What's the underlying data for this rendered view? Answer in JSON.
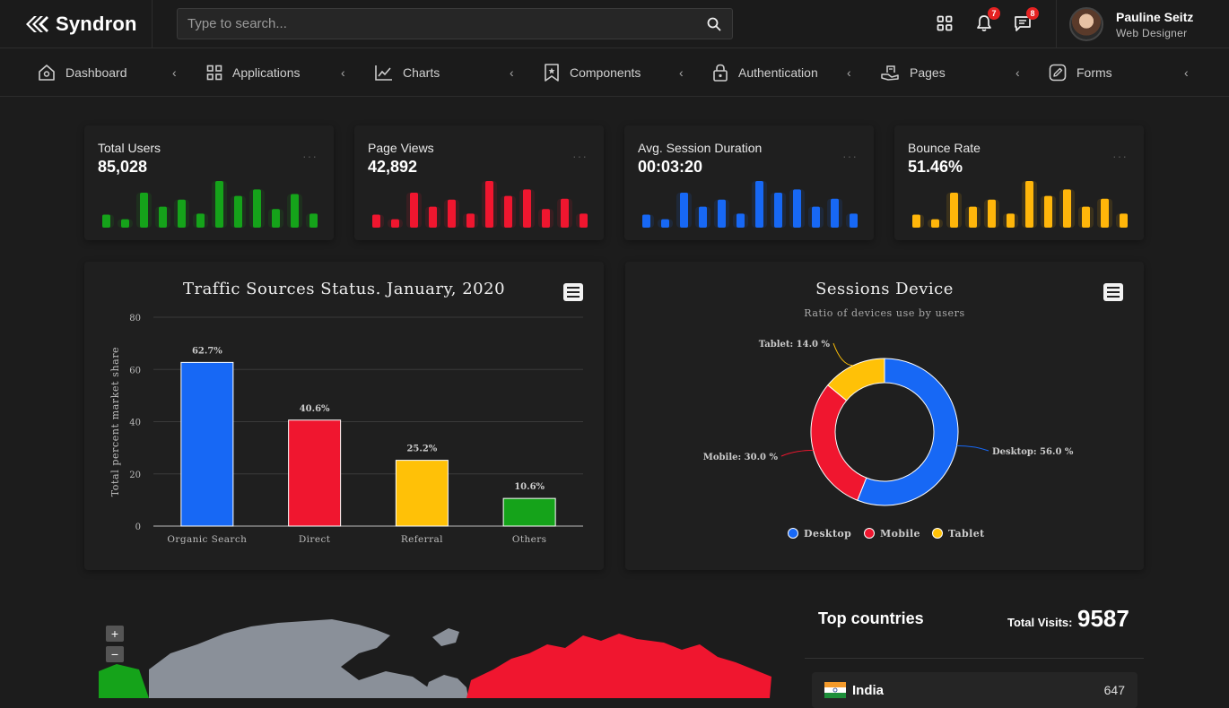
{
  "brand": {
    "name": "Syndron"
  },
  "search": {
    "placeholder": "Type to search..."
  },
  "notifications": {
    "bell_count": "7",
    "messages_count": "8"
  },
  "user": {
    "name": "Pauline Seitz",
    "role": "Web Designer"
  },
  "nav": [
    {
      "label": "Dashboard",
      "icon": "home-icon"
    },
    {
      "label": "Applications",
      "icon": "grid-icon"
    },
    {
      "label": "Charts",
      "icon": "line-chart-icon"
    },
    {
      "label": "Components",
      "icon": "bookmark-icon"
    },
    {
      "label": "Authentication",
      "icon": "lock-icon"
    },
    {
      "label": "Pages",
      "icon": "pages-icon"
    },
    {
      "label": "Forms",
      "icon": "edit-icon"
    }
  ],
  "stats": [
    {
      "title": "Total Users",
      "value": "85,028",
      "color": "#15a31a",
      "dots": "···",
      "bars": [
        0.28,
        0.18,
        0.75,
        0.45,
        0.6,
        0.3,
        1.0,
        0.68,
        0.82,
        0.4,
        0.72,
        0.3
      ]
    },
    {
      "title": "Page Views",
      "value": "42,892",
      "color": "#f0162f",
      "dots": "···",
      "bars": [
        0.28,
        0.18,
        0.75,
        0.45,
        0.6,
        0.3,
        1.0,
        0.68,
        0.82,
        0.4,
        0.62,
        0.3
      ]
    },
    {
      "title": "Avg. Session Duration",
      "value": "00:03:20",
      "color": "#1768f5",
      "dots": "···",
      "bars": [
        0.28,
        0.18,
        0.75,
        0.45,
        0.6,
        0.3,
        1.0,
        0.75,
        0.82,
        0.45,
        0.62,
        0.3
      ]
    },
    {
      "title": "Bounce Rate",
      "value": "51.46%",
      "color": "#ffb60a",
      "dots": "···",
      "bars": [
        0.28,
        0.18,
        0.75,
        0.45,
        0.6,
        0.3,
        1.0,
        0.68,
        0.82,
        0.45,
        0.62,
        0.3
      ]
    }
  ],
  "chart_data": [
    {
      "type": "bar",
      "title": "Traffic Sources Status. January, 2020",
      "ylabel": "Total percent market share",
      "xlabel": "",
      "categories": [
        "Organic Search",
        "Direct",
        "Referral",
        "Others"
      ],
      "values": [
        62.7,
        40.6,
        25.2,
        10.6
      ],
      "data_labels": [
        "62.7%",
        "40.6%",
        "25.2%",
        "10.6%"
      ],
      "colors": [
        "#1768f5",
        "#f0162f",
        "#ffc107",
        "#15a31a"
      ],
      "ylim": [
        0,
        80
      ],
      "yticks": [
        0,
        20,
        40,
        60,
        80
      ],
      "grid": true
    },
    {
      "type": "pie",
      "title": "Sessions Device",
      "subtitle": "Ratio of devices use by users",
      "categories": [
        "Desktop",
        "Mobile",
        "Tablet"
      ],
      "values": [
        56.0,
        30.0,
        14.0
      ],
      "data_labels": [
        "Desktop: 56.0 %",
        "Mobile: 30.0 %",
        "Tablet: 14.0 %"
      ],
      "colors": [
        "#1768f5",
        "#f0162f",
        "#ffc107"
      ],
      "legend": "bottom"
    }
  ],
  "map": {
    "zoom_in": "+",
    "zoom_out": "−"
  },
  "top_countries": {
    "title": "Top countries",
    "total_label": "Total Visits:",
    "total_value": "9587",
    "rows": [
      {
        "name": "India",
        "value": "647"
      }
    ]
  }
}
